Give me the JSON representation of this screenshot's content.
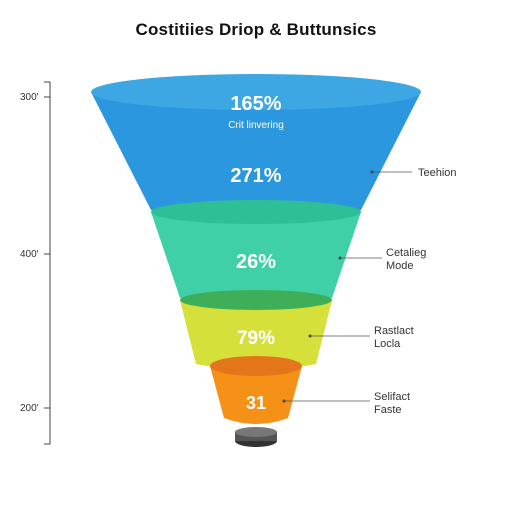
{
  "chart_data": {
    "type": "funnel",
    "title": "Costitiies Driop & Buttunsics",
    "y_ticks": [
      "300",
      "400",
      "200"
    ],
    "stages": [
      {
        "value": "165%",
        "sublabel": "Crit linvering",
        "color_top": "#3da7e3",
        "color_body": "#2a97df",
        "label": ""
      },
      {
        "value": "271%",
        "sublabel": "",
        "color_top": "#2a97df",
        "color_body": "#2a97df",
        "label": "Teehion"
      },
      {
        "value": "26%",
        "sublabel": "",
        "color_top": "#2fbf96",
        "color_body": "#3fd0a8",
        "label": "Cetalieg\nMode"
      },
      {
        "value": "79%",
        "sublabel": "",
        "color_top": "#3fae58",
        "color_body": "#d6e03a",
        "label": "Rastlact\nLocla"
      },
      {
        "value": "31",
        "sublabel": "",
        "color_top": "#e4751a",
        "color_body": "#f59116",
        "label": "Selifact\nFaste"
      }
    ],
    "base_color": "#555555"
  }
}
